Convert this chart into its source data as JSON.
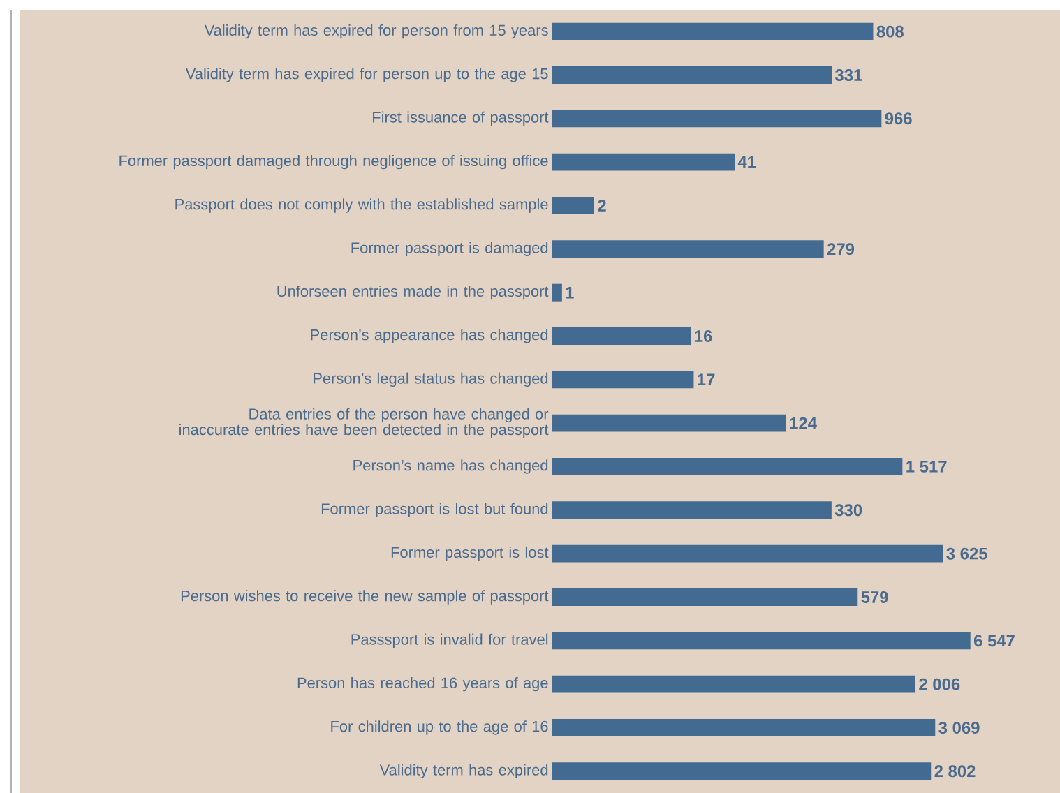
{
  "chart_data": {
    "type": "bar",
    "orientation": "horizontal",
    "log": "x",
    "xlim": [
      0.8,
      45000
    ],
    "tick_labels": "y",
    "color": "#436b91",
    "categories": [
      "Validity term has expired for person from 15 years",
      "Validity term has expired for person up to the age 15",
      "First issuance of passport",
      "Former passport damaged through negligence of issuing office",
      "Passport does not comply with the established sample",
      "Former passport is damaged",
      "Unforseen entries made in the passport",
      "Person’s appearance has changed",
      "Person’s legal status has changed",
      "Data entries of the person have changed or inaccurate entries have been detected in the passport",
      "Person’s name has changed",
      "Former passport is lost but found",
      "Former passport is lost",
      "Person wishes to receive the new sample of passport",
      "Passsport is invalid for travel",
      "Person has reached 16 years of age",
      "For children up to the age of 16",
      "Validity term has expired"
    ],
    "values": [
      808,
      331,
      966,
      41,
      2,
      279,
      1,
      16,
      17,
      124,
      1517,
      330,
      3625,
      579,
      6547,
      2006,
      3069,
      2802
    ],
    "value_labels": [
      "808",
      "331",
      "966",
      "41",
      "2",
      "279",
      "1",
      "16",
      "17",
      "124",
      "1 517",
      "330",
      "3 625",
      "579",
      "6 547",
      "2 006",
      "3 069",
      "2 802"
    ]
  }
}
